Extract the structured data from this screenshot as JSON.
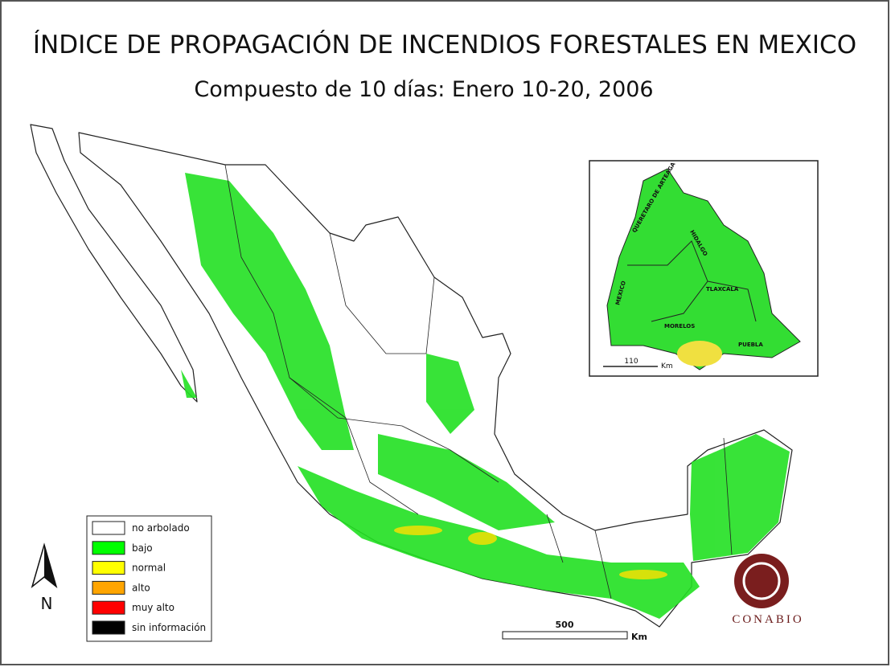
{
  "header": {
    "title": "ÍNDICE DE PROPAGACIÓN DE INCENDIOS FORESTALES EN MEXICO",
    "subtitle": "Compuesto de 10 días: Enero 10-20, 2006"
  },
  "legend": {
    "items": [
      {
        "label": "no arbolado",
        "color": "#ffffff"
      },
      {
        "label": "bajo",
        "color": "#00ff00"
      },
      {
        "label": "normal",
        "color": "#ffff00"
      },
      {
        "label": "alto",
        "color": "#ffa500"
      },
      {
        "label": "muy alto",
        "color": "#ff0000"
      },
      {
        "label": "sin información",
        "color": "#000000"
      }
    ]
  },
  "scale_bar": {
    "value": "500",
    "unit": "Km"
  },
  "inset": {
    "labels": [
      "QUERETARO DE ARTEAGA",
      "HIDALGO",
      "TLAXCALA",
      "MEXICO",
      "MORELOS",
      "PUEBLA"
    ],
    "scale_bar": {
      "value": "110",
      "unit": "Km"
    }
  },
  "north_arrow": "N",
  "logo": "CONABIO"
}
